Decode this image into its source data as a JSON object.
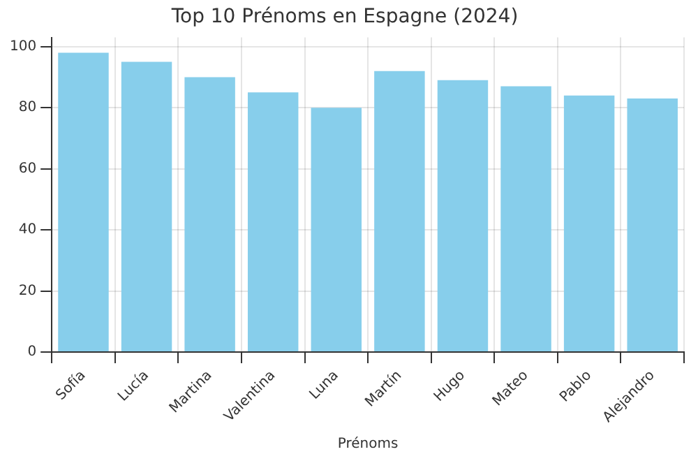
{
  "chart_data": {
    "type": "bar",
    "title": "Top 10 Prénoms en Espagne (2024)",
    "xlabel": "Prénoms",
    "categories": [
      "Sofía",
      "Lucía",
      "Martina",
      "Valentina",
      "Luna",
      "Martín",
      "Hugo",
      "Mateo",
      "Pablo",
      "Alejandro"
    ],
    "values": [
      98,
      95,
      90,
      85,
      80,
      92,
      89,
      87,
      84,
      83
    ],
    "color": "#87ceeb",
    "ylim": [
      0,
      103
    ],
    "yticks": [
      0,
      20,
      40,
      60,
      80,
      100
    ],
    "grid": true
  }
}
